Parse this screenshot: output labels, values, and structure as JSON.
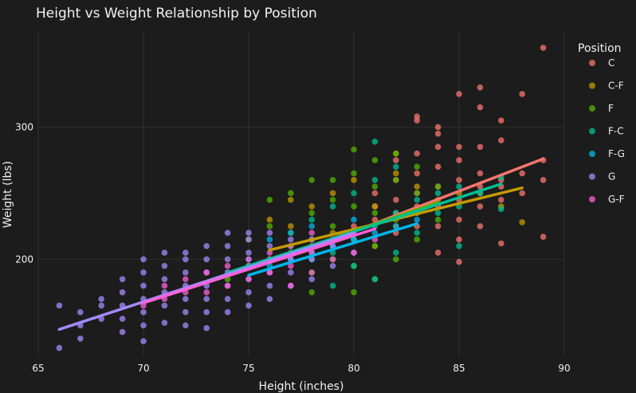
{
  "chart_data": {
    "type": "scatter",
    "title": "Height vs Weight Relationship by Position",
    "xlabel": "Height (inches)",
    "ylabel": "Weight (lbs)",
    "xlim": [
      65,
      90
    ],
    "ylim": [
      126,
      372
    ],
    "x_ticks": [
      65,
      70,
      75,
      80,
      85,
      90
    ],
    "y_ticks": [
      200,
      300
    ],
    "grid": true,
    "legend_title": "Position",
    "legend_position": "right",
    "series": [
      {
        "name": "C",
        "color": "#f8766d",
        "trend": {
          "x": [
            80,
            89
          ],
          "y": [
            221,
            276
          ]
        },
        "points": [
          [
            80,
            215
          ],
          [
            80,
            225
          ],
          [
            81,
            230
          ],
          [
            81,
            240
          ],
          [
            81,
            250
          ],
          [
            82,
            220
          ],
          [
            82,
            235
          ],
          [
            82,
            245
          ],
          [
            82,
            260
          ],
          [
            82,
            275
          ],
          [
            83,
            225
          ],
          [
            83,
            240
          ],
          [
            83,
            250
          ],
          [
            83,
            265
          ],
          [
            83,
            280
          ],
          [
            83,
            305
          ],
          [
            83,
            308
          ],
          [
            84,
            205
          ],
          [
            84,
            225
          ],
          [
            84,
            240
          ],
          [
            84,
            255
          ],
          [
            84,
            270
          ],
          [
            84,
            285
          ],
          [
            84,
            295
          ],
          [
            84,
            300
          ],
          [
            85,
            198
          ],
          [
            85,
            215
          ],
          [
            85,
            230
          ],
          [
            85,
            245
          ],
          [
            85,
            260
          ],
          [
            85,
            275
          ],
          [
            85,
            285
          ],
          [
            85,
            325
          ],
          [
            86,
            225
          ],
          [
            86,
            240
          ],
          [
            86,
            255
          ],
          [
            86,
            265
          ],
          [
            86,
            285
          ],
          [
            86,
            315
          ],
          [
            86,
            330
          ],
          [
            87,
            212
          ],
          [
            87,
            245
          ],
          [
            87,
            255
          ],
          [
            87,
            260
          ],
          [
            87,
            290
          ],
          [
            87,
            305
          ],
          [
            88,
            250
          ],
          [
            88,
            265
          ],
          [
            88,
            325
          ],
          [
            89,
            217
          ],
          [
            89,
            260
          ],
          [
            89,
            275
          ],
          [
            89,
            360
          ]
        ]
      },
      {
        "name": "C-F",
        "color": "#c49a00",
        "trend": {
          "x": [
            76,
            88
          ],
          "y": [
            207,
            254
          ]
        },
        "points": [
          [
            76,
            230
          ],
          [
            77,
            225
          ],
          [
            77,
            245
          ],
          [
            78,
            210
          ],
          [
            78,
            240
          ],
          [
            79,
            220
          ],
          [
            79,
            250
          ],
          [
            80,
            215
          ],
          [
            80,
            260
          ],
          [
            81,
            210
          ],
          [
            81,
            240
          ],
          [
            82,
            225
          ],
          [
            82,
            265
          ],
          [
            82,
            280
          ],
          [
            83,
            235
          ],
          [
            83,
            255
          ],
          [
            84,
            245
          ],
          [
            85,
            250
          ],
          [
            86,
            250
          ],
          [
            87,
            240
          ],
          [
            88,
            228
          ]
        ]
      },
      {
        "name": "F",
        "color": "#53b400",
        "trend": {
          "x": [
            72,
            84
          ],
          "y": [
            178,
            243
          ]
        },
        "points": [
          [
            74,
            185
          ],
          [
            75,
            195
          ],
          [
            75,
            215
          ],
          [
            76,
            200
          ],
          [
            76,
            225
          ],
          [
            76,
            245
          ],
          [
            77,
            205
          ],
          [
            77,
            220
          ],
          [
            77,
            250
          ],
          [
            78,
            190
          ],
          [
            78,
            215
          ],
          [
            78,
            235
          ],
          [
            78,
            260
          ],
          [
            78,
            175
          ],
          [
            79,
            200
          ],
          [
            79,
            225
          ],
          [
            79,
            245
          ],
          [
            79,
            260
          ],
          [
            80,
            175
          ],
          [
            80,
            195
          ],
          [
            80,
            215
          ],
          [
            80,
            240
          ],
          [
            80,
            265
          ],
          [
            80,
            283
          ],
          [
            81,
            185
          ],
          [
            81,
            210
          ],
          [
            81,
            235
          ],
          [
            81,
            255
          ],
          [
            81,
            275
          ],
          [
            82,
            200
          ],
          [
            82,
            230
          ],
          [
            82,
            260
          ],
          [
            82,
            280
          ],
          [
            83,
            215
          ],
          [
            83,
            250
          ],
          [
            83,
            270
          ],
          [
            84,
            230
          ],
          [
            84,
            255
          ]
        ]
      },
      {
        "name": "F-C",
        "color": "#00c094",
        "trend": {
          "x": [
            74,
            87
          ],
          "y": [
            190,
            257
          ]
        },
        "points": [
          [
            77,
            210
          ],
          [
            78,
            200
          ],
          [
            78,
            230
          ],
          [
            79,
            205
          ],
          [
            79,
            240
          ],
          [
            79,
            180
          ],
          [
            80,
            215
          ],
          [
            80,
            250
          ],
          [
            80,
            195
          ],
          [
            81,
            225
          ],
          [
            81,
            260
          ],
          [
            81,
            289
          ],
          [
            81,
            185
          ],
          [
            82,
            235
          ],
          [
            82,
            270
          ],
          [
            82,
            205
          ],
          [
            83,
            245
          ],
          [
            83,
            220
          ],
          [
            84,
            250
          ],
          [
            84,
            235
          ],
          [
            85,
            255
          ],
          [
            85,
            210
          ],
          [
            85,
            240
          ],
          [
            86,
            250
          ],
          [
            87,
            262
          ],
          [
            87,
            238
          ]
        ]
      },
      {
        "name": "F-G",
        "color": "#00b6eb",
        "trend": {
          "x": [
            75,
            83
          ],
          "y": [
            188,
            227
          ]
        },
        "points": [
          [
            75,
            200
          ],
          [
            76,
            195
          ],
          [
            76,
            215
          ],
          [
            77,
            200
          ],
          [
            77,
            220
          ],
          [
            78,
            205
          ],
          [
            78,
            225
          ],
          [
            79,
            210
          ],
          [
            80,
            215
          ],
          [
            80,
            230
          ],
          [
            81,
            220
          ],
          [
            82,
            225
          ],
          [
            83,
            230
          ]
        ]
      },
      {
        "name": "G",
        "color": "#a58aff",
        "trend": {
          "x": [
            66,
            80
          ],
          "y": [
            147,
            220
          ]
        },
        "points": [
          [
            66,
            133
          ],
          [
            66,
            165
          ],
          [
            67,
            140
          ],
          [
            67,
            150
          ],
          [
            67,
            160
          ],
          [
            68,
            155
          ],
          [
            68,
            165
          ],
          [
            68,
            170
          ],
          [
            69,
            145
          ],
          [
            69,
            155
          ],
          [
            69,
            165
          ],
          [
            69,
            175
          ],
          [
            69,
            185
          ],
          [
            70,
            138
          ],
          [
            70,
            150
          ],
          [
            70,
            160
          ],
          [
            70,
            170
          ],
          [
            70,
            180
          ],
          [
            70,
            190
          ],
          [
            70,
            200
          ],
          [
            71,
            152
          ],
          [
            71,
            165
          ],
          [
            71,
            175
          ],
          [
            71,
            185
          ],
          [
            71,
            195
          ],
          [
            71,
            205
          ],
          [
            72,
            150
          ],
          [
            72,
            160
          ],
          [
            72,
            170
          ],
          [
            72,
            180
          ],
          [
            72,
            190
          ],
          [
            72,
            200
          ],
          [
            72,
            205
          ],
          [
            73,
            148
          ],
          [
            73,
            160
          ],
          [
            73,
            170
          ],
          [
            73,
            180
          ],
          [
            73,
            190
          ],
          [
            73,
            200
          ],
          [
            73,
            210
          ],
          [
            74,
            160
          ],
          [
            74,
            170
          ],
          [
            74,
            180
          ],
          [
            74,
            190
          ],
          [
            74,
            200
          ],
          [
            74,
            210
          ],
          [
            74,
            220
          ],
          [
            75,
            165
          ],
          [
            75,
            175
          ],
          [
            75,
            185
          ],
          [
            75,
            195
          ],
          [
            75,
            205
          ],
          [
            75,
            215
          ],
          [
            75,
            220
          ],
          [
            76,
            170
          ],
          [
            76,
            180
          ],
          [
            76,
            190
          ],
          [
            76,
            200
          ],
          [
            76,
            210
          ],
          [
            76,
            220
          ],
          [
            77,
            180
          ],
          [
            77,
            190
          ],
          [
            77,
            200
          ],
          [
            77,
            215
          ],
          [
            78,
            185
          ],
          [
            78,
            200
          ],
          [
            78,
            215
          ],
          [
            79,
            195
          ],
          [
            79,
            210
          ],
          [
            80,
            205
          ]
        ]
      },
      {
        "name": "G-F",
        "color": "#fb61d7",
        "trend": {
          "x": [
            70,
            81
          ],
          "y": [
            167,
            223
          ]
        },
        "points": [
          [
            70,
            165
          ],
          [
            71,
            170
          ],
          [
            71,
            180
          ],
          [
            72,
            175
          ],
          [
            72,
            185
          ],
          [
            73,
            175
          ],
          [
            73,
            190
          ],
          [
            74,
            180
          ],
          [
            74,
            195
          ],
          [
            75,
            185
          ],
          [
            75,
            200
          ],
          [
            76,
            190
          ],
          [
            76,
            205
          ],
          [
            77,
            180
          ],
          [
            77,
            195
          ],
          [
            77,
            210
          ],
          [
            78,
            190
          ],
          [
            78,
            205
          ],
          [
            78,
            220
          ],
          [
            79,
            200
          ],
          [
            79,
            215
          ],
          [
            80,
            205
          ],
          [
            80,
            220
          ],
          [
            81,
            215
          ]
        ]
      }
    ]
  }
}
